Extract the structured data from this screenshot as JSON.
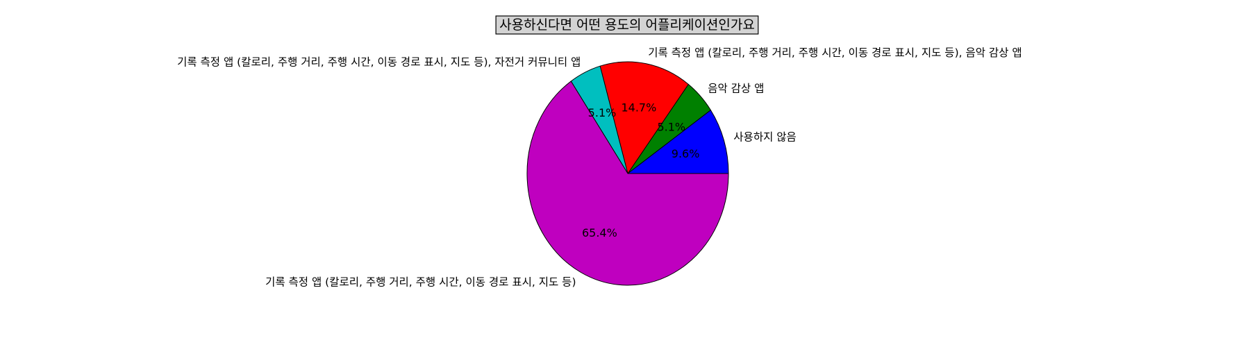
{
  "chart_data": {
    "type": "pie",
    "title": "사용하신다면 어떤 용도의 어플리케이션인가요",
    "slices": [
      {
        "label": "사용하지 않음",
        "percent": 9.6,
        "pct_label": "9.6%",
        "color": "#0000ff"
      },
      {
        "label": "음악 감상 앱",
        "percent": 5.1,
        "pct_label": "5.1%",
        "color": "#008000"
      },
      {
        "label": "기록 측정 앱 (칼로리, 주행 거리, 주행 시간, 이동 경로 표시, 지도 등), 음악 감상 앱",
        "percent": 14.7,
        "pct_label": "14.7%",
        "color": "#ff0000"
      },
      {
        "label": "기록 측정 앱 (칼로리, 주행 거리, 주행 시간, 이동 경로 표시, 지도 등), 자전거 커뮤니티 앱",
        "percent": 5.1,
        "pct_label": "5.1%",
        "color": "#00bfbf"
      },
      {
        "label": "기록 측정 앱 (칼로리, 주행 거리, 주행 시간, 이동 경로 표시, 지도 등)",
        "percent": 65.4,
        "pct_label": "65.4%",
        "color": "#bf00bf"
      }
    ],
    "start_angle_deg": 0,
    "direction": "counterclockwise",
    "legend": "none"
  }
}
